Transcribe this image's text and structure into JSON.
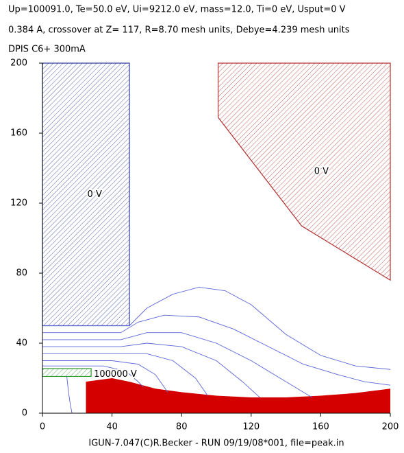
{
  "chart_data": {
    "type": "field-map",
    "title_lines": [
      "Up=100091.0, Te=50.0 eV, Ui=9212.0 eV, mass=12.0, Ti=0 eV, Usput=0 V",
      "0.384 A, crossover at Z= 117, R=8.70 mesh units, Debye=4.239 mesh units",
      "DPIS C6+ 300mA"
    ],
    "footer": "IGUN-7.047(C)R.Becker - RUN 09/19/08*001, file=peak.in",
    "xlim": [
      0,
      200
    ],
    "ylim": [
      0,
      200
    ],
    "xticks": [
      0,
      40,
      80,
      120,
      160,
      200
    ],
    "yticks": [
      0,
      40,
      80,
      120,
      160,
      200
    ],
    "regions": [
      {
        "label": "0 V",
        "color": "#2a3c9c",
        "x": [
          0,
          50,
          50,
          0
        ],
        "y": [
          50,
          50,
          200,
          200
        ]
      },
      {
        "label": "0 V",
        "color": "#b03030",
        "x": [
          101,
          101,
          149,
          200,
          200
        ],
        "y": [
          200,
          169,
          107,
          76,
          200
        ]
      },
      {
        "label": "100000 V",
        "color": "#2e9a2e",
        "x": [
          0,
          28,
          28,
          0
        ],
        "y": [
          21,
          21,
          25.5,
          25.5
        ]
      }
    ],
    "beam": {
      "color": "#d40000",
      "x": [
        25,
        25,
        40,
        50,
        65,
        80,
        100,
        120,
        140,
        160,
        180,
        200,
        200
      ],
      "y": [
        0,
        18,
        20,
        18,
        14,
        12,
        10,
        9,
        9,
        10,
        11.5,
        14,
        0
      ]
    },
    "line_color": "#5a64d8",
    "lines": [
      {
        "x": [
          0,
          50,
          60,
          75,
          90,
          105,
          120,
          140,
          160,
          180,
          200
        ],
        "y": [
          50,
          50,
          60,
          68,
          72,
          70,
          62,
          45,
          33,
          27,
          25
        ]
      },
      {
        "x": [
          0,
          45,
          55,
          70,
          90,
          110,
          130,
          150,
          170,
          185,
          200
        ],
        "y": [
          46,
          46,
          52,
          56,
          55,
          48,
          38,
          28,
          22,
          18,
          16
        ]
      },
      {
        "x": [
          0,
          45,
          60,
          80,
          100,
          120,
          140,
          155
        ],
        "y": [
          42,
          42,
          46,
          46,
          40,
          30,
          18,
          9
        ]
      },
      {
        "x": [
          0,
          45,
          60,
          80,
          100,
          115,
          125
        ],
        "y": [
          38,
          38,
          40,
          38,
          30,
          18,
          9
        ]
      },
      {
        "x": [
          0,
          40,
          60,
          75,
          88,
          95
        ],
        "y": [
          34,
          34,
          34,
          30,
          20,
          10
        ]
      },
      {
        "x": [
          0,
          40,
          55,
          65,
          72
        ],
        "y": [
          30,
          30,
          28,
          22,
          12
        ]
      },
      {
        "x": [
          0,
          35,
          48,
          55,
          58
        ],
        "y": [
          27,
          27,
          24,
          18,
          15
        ]
      },
      {
        "x": [
          14,
          15,
          16,
          17
        ],
        "y": [
          21,
          12,
          5,
          0
        ]
      }
    ]
  }
}
